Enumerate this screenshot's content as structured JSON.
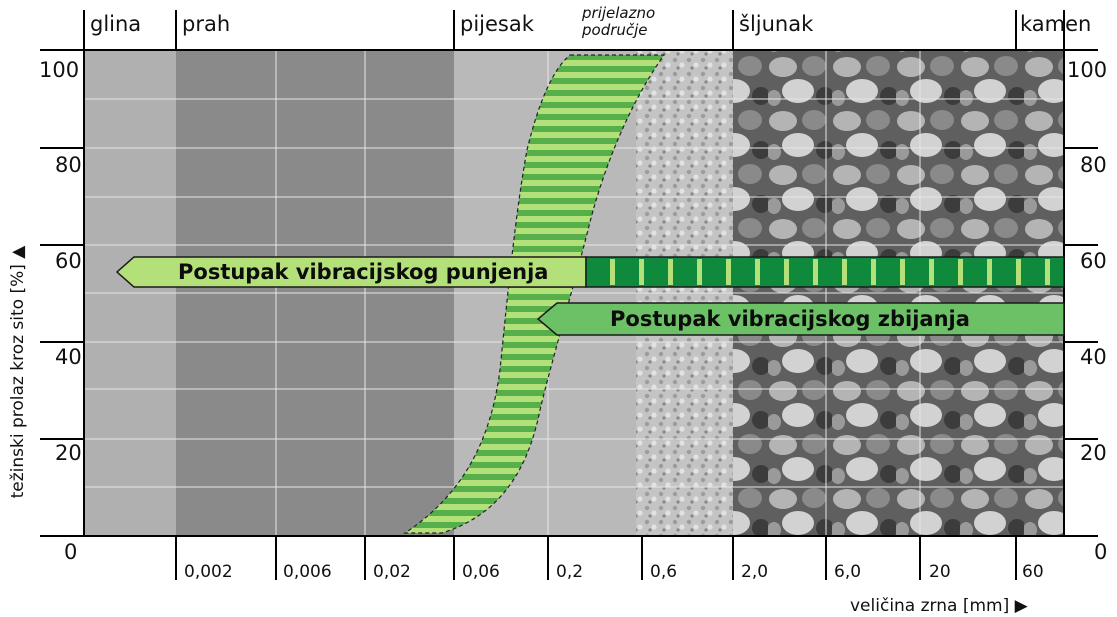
{
  "categories": [
    {
      "label": "glina"
    },
    {
      "label": "prah"
    },
    {
      "label": "pijesak"
    },
    {
      "label": "prijelazno"
    },
    {
      "label": "područje"
    },
    {
      "label": "šljunak"
    },
    {
      "label": "kamen"
    }
  ],
  "y_axis": {
    "label": "težinski prolaz kroz sito [%] ▲",
    "ticks": [
      "0",
      "20",
      "40",
      "60",
      "80",
      "100"
    ],
    "ticks_right": [
      "0",
      "20",
      "40",
      "60",
      "80",
      "100"
    ]
  },
  "x_axis": {
    "label": "veličina zrna [mm] ▶",
    "ticks": [
      "0,002",
      "0,006",
      "0,02",
      "0,06",
      "0,2",
      "0,6",
      "2,0",
      "6,0",
      "20",
      "60"
    ]
  },
  "ranges": [
    {
      "label": "Postupak vibracijskog punjenja",
      "direction": "left",
      "level_percent": 56
    },
    {
      "label": "Postupak vibracijskog zbijanja",
      "direction": "left",
      "level_percent": 46
    }
  ],
  "colors": {
    "light_green": "#b4e07a",
    "mid_green": "#6cc167",
    "dark_green": "#0f8a3c",
    "stripe_green": "#55b04c",
    "clay_bg": "#b0b0b0",
    "silt_bg": "#8a8a8a",
    "sand_bg": "#b9b9b9",
    "gravel_bg": "#7d7d7d"
  }
}
